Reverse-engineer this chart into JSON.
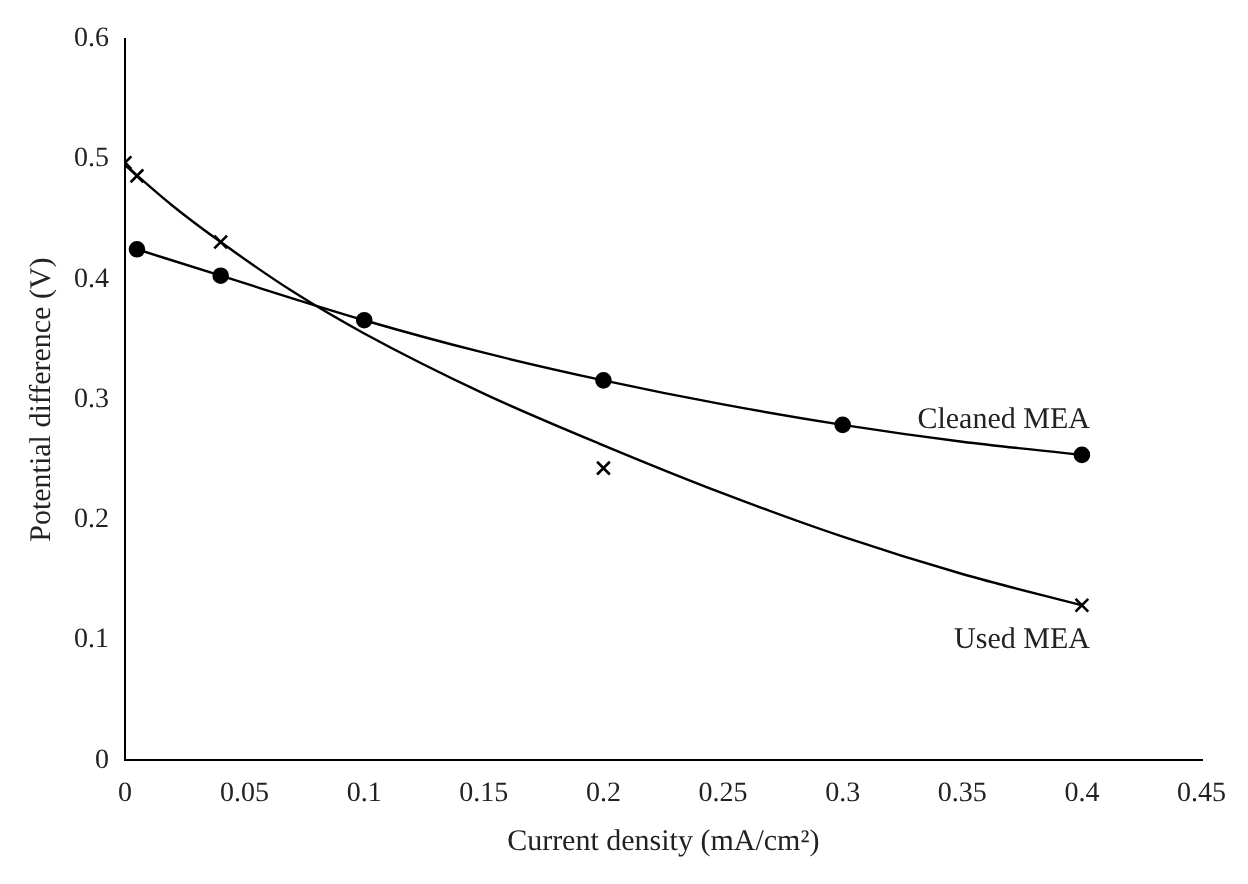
{
  "chart_data": {
    "type": "scatter",
    "xlabel": "Current density (mA/cm²)",
    "ylabel": "Potential difference (V)",
    "xlim": [
      0,
      0.45
    ],
    "xticks": [
      0,
      0.05,
      0.1,
      0.15,
      0.2,
      0.25,
      0.3,
      0.35,
      0.4,
      0.45
    ],
    "ylim": [
      0,
      0.6
    ],
    "yticks": [
      0,
      0.1,
      0.2,
      0.3,
      0.4,
      0.5,
      0.6
    ],
    "grid": false,
    "legend": false,
    "series": [
      {
        "name": "Cleaned MEA",
        "type": "scatter",
        "marker": "circle",
        "color": "#000000",
        "x": [
          0.005,
          0.04,
          0.1,
          0.2,
          0.3,
          0.4
        ],
        "values": [
          0.425,
          0.403,
          0.366,
          0.316,
          0.279,
          0.254
        ]
      },
      {
        "name": "Used MEA",
        "type": "scatter",
        "marker": "cross",
        "color": "#000000",
        "x": [
          0,
          0.005,
          0.04,
          0.2,
          0.4
        ],
        "values": [
          0.497,
          0.486,
          0.431,
          0.243,
          0.129
        ]
      },
      {
        "type": "line",
        "marker": "none",
        "color": "#000000",
        "x": [
          0.005,
          0.04,
          0.1,
          0.15,
          0.2,
          0.25,
          0.3,
          0.35,
          0.4
        ],
        "values": [
          0.425,
          0.403,
          0.366,
          0.339,
          0.316,
          0.296,
          0.279,
          0.265,
          0.254
        ]
      },
      {
        "type": "line",
        "marker": "none",
        "color": "#000000",
        "x": [
          0,
          0.02,
          0.04,
          0.07,
          0.1,
          0.15,
          0.2,
          0.25,
          0.3,
          0.35,
          0.4
        ],
        "values": [
          0.495,
          0.461,
          0.431,
          0.39,
          0.355,
          0.305,
          0.262,
          0.222,
          0.186,
          0.155,
          0.129
        ]
      }
    ]
  }
}
